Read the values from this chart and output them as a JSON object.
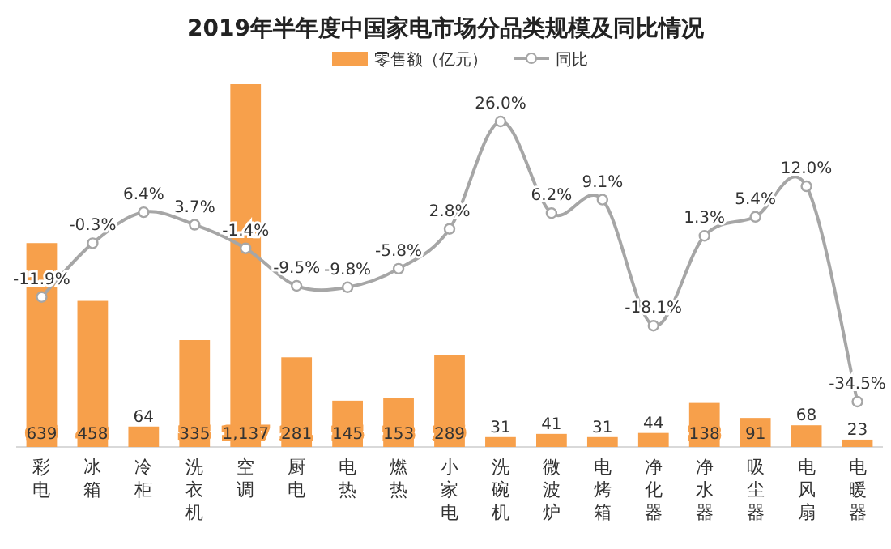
{
  "chart_data": {
    "type": "bar",
    "title": "2019年半年度中国家电市场分品类规模及同比情况",
    "categories": [
      "彩电",
      "冰箱",
      "冷柜",
      "洗衣机",
      "空调",
      "厨电",
      "电热",
      "燃热",
      "小家电",
      "洗碗机",
      "微波炉",
      "电烤箱",
      "净化器",
      "净水器",
      "吸尘器",
      "电风扇",
      "电暖器"
    ],
    "series": [
      {
        "name": "零售额（亿元）",
        "color": "#f7a04b",
        "values": [
          639,
          458,
          64,
          335,
          1137,
          281,
          145,
          153,
          289,
          31,
          41,
          31,
          44,
          138,
          91,
          68,
          23
        ],
        "value_labels": [
          "639",
          "458",
          "64",
          "335",
          "1,137",
          "281",
          "145",
          "153",
          "289",
          "31",
          "41",
          "31",
          "44",
          "138",
          "91",
          "68",
          "23"
        ]
      },
      {
        "name": "同比",
        "type": "line",
        "axis": "y2",
        "color": "#a6a6a6",
        "values": [
          -11.9,
          -0.3,
          6.4,
          3.7,
          -1.4,
          -9.5,
          -9.8,
          -5.8,
          2.8,
          26.0,
          6.2,
          9.1,
          -18.1,
          1.3,
          5.4,
          12.0,
          -34.5
        ],
        "value_labels": [
          "-11.9%",
          "-0.3%",
          "6.4%",
          "3.7%",
          "-1.4%",
          "-9.5%",
          "-9.8%",
          "-5.8%",
          "2.8%",
          "26.0%",
          "6.2%",
          "9.1%",
          "-18.1%",
          "1.3%",
          "5.4%",
          "12.0%",
          "-34.5%"
        ]
      }
    ],
    "legend": "top",
    "marker": "circle"
  }
}
